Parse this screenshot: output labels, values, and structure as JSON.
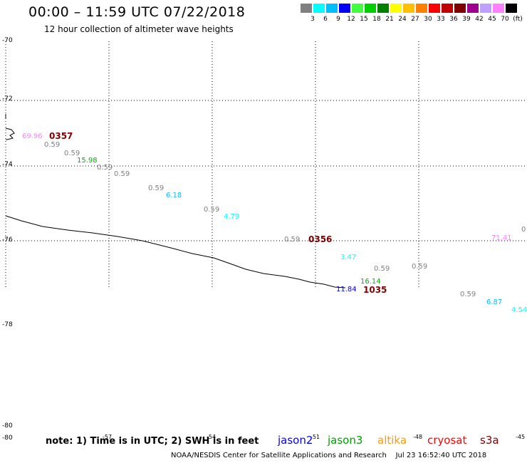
{
  "header": {
    "title": "00:00 – 11:59 UTC 07/22/2018",
    "subtitle": "12 hour collection of altimeter wave heights"
  },
  "legend": {
    "colors": [
      "#808080",
      "#00ffff",
      "#00bfff",
      "#0000ff",
      "#40ff40",
      "#00d000",
      "#008000",
      "#ffff00",
      "#ffc000",
      "#ff8000",
      "#ff0000",
      "#c00000",
      "#800000",
      "#a00090",
      "#c0a0ff",
      "#ff80ff",
      "#000000"
    ],
    "labels": [
      "3",
      "6",
      "9",
      "12",
      "15",
      "18",
      "21",
      "24",
      "27",
      "30",
      "33",
      "36",
      "39",
      "42",
      "45",
      "70",
      "(ft)"
    ]
  },
  "axes": {
    "lat_labels": [
      "-70",
      "-72",
      "-74",
      "-76",
      "-78",
      "-80",
      "-80"
    ],
    "lon_labels": [
      "-57",
      "-54",
      "-51",
      "-48",
      "-45"
    ]
  },
  "observations": [
    {
      "text": "69.96",
      "color": "#ff80ff"
    },
    {
      "text": "0.59",
      "color": "#808080"
    },
    {
      "text": "0.59",
      "color": "#808080"
    },
    {
      "text": "15.98",
      "color": "#00b000"
    },
    {
      "text": "0.59",
      "color": "#808080"
    },
    {
      "text": "0.59",
      "color": "#808080"
    },
    {
      "text": "0.59",
      "color": "#808080"
    },
    {
      "text": "6.18",
      "color": "#00bfff"
    },
    {
      "text": "0.59",
      "color": "#808080"
    },
    {
      "text": "4.79",
      "color": "#00ffff"
    },
    {
      "text": "0.59",
      "color": "#808080"
    },
    {
      "text": "3.47",
      "color": "#00ffff"
    },
    {
      "text": "0.59",
      "color": "#808080"
    },
    {
      "text": "0.59",
      "color": "#808080"
    },
    {
      "text": "16.14",
      "color": "#00b000"
    },
    {
      "text": "11.84",
      "color": "#0000ff"
    },
    {
      "text": "0.59",
      "color": "#808080"
    },
    {
      "text": "6.87",
      "color": "#00bfff"
    },
    {
      "text": "4.54",
      "color": "#00ffff"
    },
    {
      "text": "71.41",
      "color": "#ff80ff"
    },
    {
      "text": "0",
      "color": "#808080"
    }
  ],
  "pass_times": [
    {
      "text": "0357",
      "color": "#800000"
    },
    {
      "text": "0356",
      "color": "#800000"
    },
    {
      "text": "1035",
      "color": "#800000"
    }
  ],
  "footer": {
    "note": "note: 1) Time is in UTC; 2) SWH is in feet",
    "satellites": [
      {
        "name": "jason2",
        "color": "#0000ff"
      },
      {
        "name": "jason3",
        "color": "#00a000"
      },
      {
        "name": "altika",
        "color": "#ff9900"
      },
      {
        "name": "cryosat",
        "color": "#ff0000"
      },
      {
        "name": "s3a",
        "color": "#800000"
      }
    ],
    "credit": "NOAA/NESDIS Center for Satellite Applications and Research",
    "timestamp": "Jul 23 16:52:40 UTC 2018"
  }
}
